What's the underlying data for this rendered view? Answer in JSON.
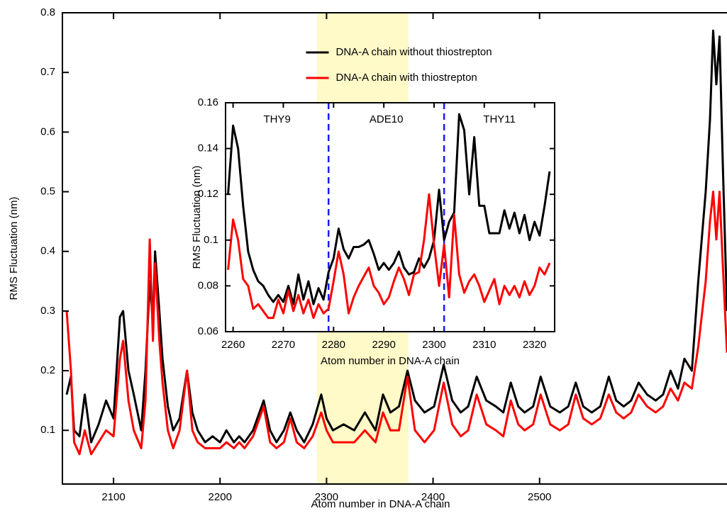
{
  "chart_data": [
    {
      "type": "line",
      "xlabel": "Atom number in DNA-A chain",
      "ylabel": "RMS Fluctuation (nm)",
      "xlim": [
        2052,
        2676
      ],
      "ylim": [
        0.01,
        0.8
      ],
      "xticks": [
        2100,
        2200,
        2300,
        2400,
        2500
      ],
      "yticks": [
        0.1,
        0.2,
        0.3,
        0.4,
        0.5,
        0.6,
        0.7,
        0.8
      ],
      "legend": "upper center",
      "highlight": {
        "xlim": [
          2291,
          2377
        ],
        "color": "#fffac8"
      },
      "x": [
        2056,
        2060,
        2063,
        2068,
        2073,
        2079,
        2086,
        2093,
        2100,
        2106,
        2109,
        2114,
        2119,
        2126,
        2130,
        2134,
        2137,
        2139,
        2143,
        2146,
        2151,
        2156,
        2162,
        2169,
        2174,
        2179,
        2186,
        2193,
        2200,
        2206,
        2213,
        2218,
        2223,
        2231,
        2241,
        2247,
        2253,
        2260,
        2266,
        2272,
        2279,
        2287,
        2295,
        2300,
        2306,
        2316,
        2326,
        2336,
        2346,
        2353,
        2360,
        2368,
        2376,
        2383,
        2392,
        2401,
        2410,
        2418,
        2426,
        2433,
        2441,
        2450,
        2459,
        2466,
        2473,
        2480,
        2486,
        2494,
        2501,
        2510,
        2519,
        2527,
        2534,
        2541,
        2549,
        2557,
        2565,
        2572,
        2579,
        2586,
        2593,
        2601,
        2609,
        2616,
        2623,
        2630,
        2636,
        2643,
        2649,
        2656,
        2660,
        2663,
        2666,
        2669,
        2672,
        2676
      ],
      "series": [
        {
          "name": "DNA-A chain without thiostrepton",
          "color": "#000000",
          "values": [
            0.16,
            0.19,
            0.1,
            0.09,
            0.16,
            0.08,
            0.11,
            0.15,
            0.12,
            0.29,
            0.3,
            0.2,
            0.16,
            0.1,
            0.2,
            0.35,
            0.28,
            0.4,
            0.3,
            0.22,
            0.14,
            0.1,
            0.12,
            0.2,
            0.13,
            0.1,
            0.08,
            0.09,
            0.08,
            0.1,
            0.08,
            0.09,
            0.08,
            0.1,
            0.15,
            0.1,
            0.08,
            0.1,
            0.13,
            0.1,
            0.08,
            0.11,
            0.16,
            0.12,
            0.1,
            0.11,
            0.1,
            0.13,
            0.1,
            0.16,
            0.13,
            0.14,
            0.2,
            0.15,
            0.13,
            0.14,
            0.21,
            0.15,
            0.13,
            0.14,
            0.19,
            0.15,
            0.14,
            0.13,
            0.18,
            0.14,
            0.13,
            0.14,
            0.19,
            0.14,
            0.13,
            0.14,
            0.18,
            0.14,
            0.13,
            0.14,
            0.19,
            0.15,
            0.14,
            0.15,
            0.18,
            0.16,
            0.15,
            0.16,
            0.2,
            0.17,
            0.22,
            0.2,
            0.35,
            0.5,
            0.62,
            0.77,
            0.68,
            0.76,
            0.55,
            0.3
          ]
        },
        {
          "name": "DNA-A chain with thiostrepton",
          "color": "#ff0000",
          "values": [
            0.3,
            0.2,
            0.08,
            0.06,
            0.1,
            0.06,
            0.08,
            0.1,
            0.09,
            0.22,
            0.25,
            0.15,
            0.1,
            0.07,
            0.15,
            0.42,
            0.25,
            0.38,
            0.25,
            0.18,
            0.1,
            0.07,
            0.1,
            0.2,
            0.1,
            0.08,
            0.07,
            0.07,
            0.07,
            0.08,
            0.07,
            0.08,
            0.07,
            0.09,
            0.14,
            0.08,
            0.07,
            0.08,
            0.12,
            0.08,
            0.07,
            0.09,
            0.13,
            0.1,
            0.08,
            0.08,
            0.08,
            0.1,
            0.08,
            0.13,
            0.1,
            0.1,
            0.19,
            0.1,
            0.08,
            0.1,
            0.18,
            0.11,
            0.09,
            0.1,
            0.16,
            0.11,
            0.1,
            0.09,
            0.15,
            0.11,
            0.1,
            0.11,
            0.16,
            0.11,
            0.1,
            0.11,
            0.16,
            0.12,
            0.11,
            0.12,
            0.16,
            0.13,
            0.12,
            0.13,
            0.16,
            0.14,
            0.13,
            0.14,
            0.17,
            0.15,
            0.18,
            0.17,
            0.24,
            0.35,
            0.45,
            0.5,
            0.42,
            0.5,
            0.38,
            0.23
          ]
        }
      ]
    },
    {
      "type": "line",
      "xlabel": "Atom number in DNA-A chain",
      "ylabel": "RMS Fluctuation (nm)",
      "xlim": [
        2258.5,
        2324
      ],
      "ylim": [
        0.06,
        0.16
      ],
      "xticks": [
        2260,
        2270,
        2280,
        2290,
        2300,
        2310,
        2320
      ],
      "yticks": [
        0.06,
        0.08,
        0.1,
        0.12,
        0.14,
        0.16
      ],
      "vlines": [
        2279,
        2302
      ],
      "vline_color": "#1a1aff",
      "regions": [
        "THY9",
        "ADE10",
        "THY11"
      ],
      "x": [
        2259,
        2260,
        2261,
        2262,
        2263,
        2264,
        2265,
        2266,
        2267,
        2268,
        2269,
        2270,
        2271,
        2272,
        2273,
        2274,
        2275,
        2276,
        2277,
        2278,
        2279,
        2280,
        2281,
        2282,
        2283,
        2284,
        2285,
        2286,
        2287,
        2288,
        2289,
        2290,
        2291,
        2292,
        2293,
        2294,
        2295,
        2296,
        2297,
        2298,
        2299,
        2300,
        2301,
        2302,
        2303,
        2304,
        2305,
        2306,
        2307,
        2308,
        2309,
        2310,
        2311,
        2312,
        2313,
        2314,
        2315,
        2316,
        2317,
        2318,
        2319,
        2320,
        2321,
        2322,
        2323
      ],
      "series": [
        {
          "color": "#000000",
          "values": [
            0.12,
            0.15,
            0.14,
            0.115,
            0.095,
            0.087,
            0.082,
            0.08,
            0.076,
            0.073,
            0.076,
            0.073,
            0.08,
            0.072,
            0.085,
            0.074,
            0.082,
            0.072,
            0.079,
            0.074,
            0.086,
            0.092,
            0.105,
            0.096,
            0.092,
            0.097,
            0.097,
            0.098,
            0.1,
            0.094,
            0.087,
            0.09,
            0.087,
            0.09,
            0.095,
            0.088,
            0.085,
            0.086,
            0.092,
            0.088,
            0.092,
            0.1,
            0.122,
            0.1,
            0.108,
            0.112,
            0.155,
            0.148,
            0.12,
            0.145,
            0.115,
            0.115,
            0.103,
            0.103,
            0.103,
            0.113,
            0.105,
            0.112,
            0.103,
            0.111,
            0.1,
            0.108,
            0.102,
            0.115,
            0.13
          ]
        },
        {
          "color": "#ff0000",
          "values": [
            0.087,
            0.109,
            0.1,
            0.083,
            0.08,
            0.07,
            0.072,
            0.069,
            0.066,
            0.066,
            0.074,
            0.068,
            0.078,
            0.069,
            0.076,
            0.068,
            0.074,
            0.066,
            0.072,
            0.068,
            0.07,
            0.082,
            0.095,
            0.085,
            0.068,
            0.075,
            0.08,
            0.084,
            0.088,
            0.08,
            0.077,
            0.072,
            0.075,
            0.082,
            0.088,
            0.083,
            0.076,
            0.085,
            0.086,
            0.1,
            0.12,
            0.098,
            0.08,
            0.098,
            0.075,
            0.111,
            0.085,
            0.077,
            0.082,
            0.085,
            0.08,
            0.073,
            0.078,
            0.083,
            0.072,
            0.08,
            0.076,
            0.08,
            0.075,
            0.082,
            0.076,
            0.08,
            0.088,
            0.085,
            0.09
          ]
        }
      ]
    }
  ]
}
